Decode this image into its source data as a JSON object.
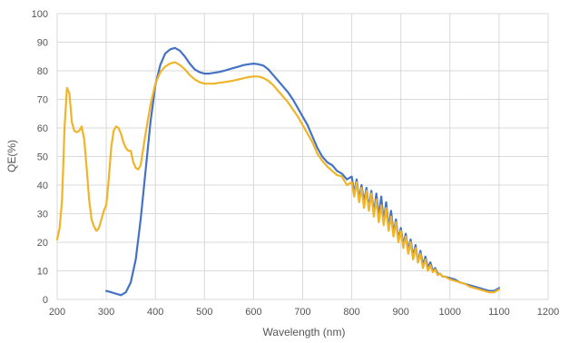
{
  "chart_data": {
    "type": "line",
    "title": "",
    "xlabel": "Wavelength (nm)",
    "ylabel": "QE(%)",
    "xlim": [
      200,
      1200
    ],
    "ylim": [
      0,
      100
    ],
    "x_ticks": [
      200,
      300,
      400,
      500,
      600,
      700,
      800,
      900,
      1000,
      1100,
      1200
    ],
    "y_ticks": [
      0,
      10,
      20,
      30,
      40,
      50,
      60,
      70,
      80,
      90,
      100
    ],
    "grid": true,
    "legend": "none",
    "series": [
      {
        "color": "#4472C4",
        "points": [
          [
            300,
            3
          ],
          [
            310,
            2.5
          ],
          [
            320,
            2
          ],
          [
            330,
            1.5
          ],
          [
            340,
            2.5
          ],
          [
            350,
            6
          ],
          [
            360,
            14
          ],
          [
            370,
            28
          ],
          [
            380,
            45
          ],
          [
            390,
            62
          ],
          [
            400,
            75
          ],
          [
            410,
            82
          ],
          [
            420,
            86
          ],
          [
            430,
            87.5
          ],
          [
            440,
            88
          ],
          [
            450,
            87
          ],
          [
            460,
            85
          ],
          [
            470,
            82.5
          ],
          [
            480,
            80.5
          ],
          [
            490,
            79.5
          ],
          [
            500,
            79
          ],
          [
            510,
            79
          ],
          [
            520,
            79.3
          ],
          [
            530,
            79.6
          ],
          [
            540,
            80
          ],
          [
            550,
            80.5
          ],
          [
            560,
            81
          ],
          [
            570,
            81.5
          ],
          [
            580,
            82
          ],
          [
            590,
            82.3
          ],
          [
            600,
            82.5
          ],
          [
            610,
            82.3
          ],
          [
            620,
            81.8
          ],
          [
            630,
            80.5
          ],
          [
            640,
            78.5
          ],
          [
            650,
            76.5
          ],
          [
            660,
            74.5
          ],
          [
            670,
            72.5
          ],
          [
            680,
            70
          ],
          [
            690,
            67
          ],
          [
            700,
            64
          ],
          [
            710,
            61
          ],
          [
            720,
            57
          ],
          [
            730,
            53
          ],
          [
            740,
            50
          ],
          [
            750,
            48
          ],
          [
            760,
            47
          ],
          [
            770,
            45
          ],
          [
            780,
            44
          ],
          [
            790,
            42
          ],
          [
            800,
            43
          ],
          [
            805,
            37
          ],
          [
            810,
            42
          ],
          [
            815,
            35
          ],
          [
            820,
            40
          ],
          [
            825,
            34
          ],
          [
            830,
            39
          ],
          [
            835,
            32
          ],
          [
            840,
            38
          ],
          [
            845,
            30
          ],
          [
            850,
            37
          ],
          [
            855,
            29
          ],
          [
            860,
            36
          ],
          [
            865,
            27
          ],
          [
            870,
            34
          ],
          [
            875,
            25
          ],
          [
            880,
            31
          ],
          [
            885,
            23
          ],
          [
            890,
            28
          ],
          [
            895,
            21
          ],
          [
            900,
            25
          ],
          [
            905,
            19
          ],
          [
            910,
            23
          ],
          [
            915,
            17
          ],
          [
            920,
            21
          ],
          [
            925,
            15
          ],
          [
            930,
            19
          ],
          [
            935,
            13
          ],
          [
            940,
            17
          ],
          [
            945,
            12
          ],
          [
            950,
            15
          ],
          [
            955,
            11
          ],
          [
            960,
            13
          ],
          [
            965,
            10
          ],
          [
            970,
            11
          ],
          [
            975,
            9
          ],
          [
            980,
            9
          ],
          [
            985,
            8
          ],
          [
            990,
            8
          ],
          [
            1000,
            7.5
          ],
          [
            1010,
            7
          ],
          [
            1020,
            6
          ],
          [
            1030,
            5.5
          ],
          [
            1040,
            5
          ],
          [
            1050,
            4.5
          ],
          [
            1060,
            4
          ],
          [
            1070,
            3.5
          ],
          [
            1080,
            3
          ],
          [
            1090,
            3
          ],
          [
            1100,
            4
          ]
        ]
      },
      {
        "color": "#F0B429",
        "points": [
          [
            200,
            21
          ],
          [
            205,
            25
          ],
          [
            210,
            35
          ],
          [
            215,
            60
          ],
          [
            220,
            74
          ],
          [
            225,
            72
          ],
          [
            230,
            62
          ],
          [
            235,
            59
          ],
          [
            240,
            58.5
          ],
          [
            245,
            59
          ],
          [
            250,
            60.5
          ],
          [
            255,
            56
          ],
          [
            260,
            46
          ],
          [
            265,
            35
          ],
          [
            270,
            28
          ],
          [
            275,
            25.5
          ],
          [
            280,
            24
          ],
          [
            285,
            25
          ],
          [
            290,
            28
          ],
          [
            295,
            31
          ],
          [
            300,
            33
          ],
          [
            305,
            42
          ],
          [
            310,
            53
          ],
          [
            315,
            59
          ],
          [
            320,
            60.5
          ],
          [
            325,
            60
          ],
          [
            330,
            58
          ],
          [
            335,
            55
          ],
          [
            340,
            53
          ],
          [
            345,
            52
          ],
          [
            350,
            52
          ],
          [
            355,
            48
          ],
          [
            360,
            46
          ],
          [
            365,
            45.5
          ],
          [
            370,
            47
          ],
          [
            380,
            58
          ],
          [
            390,
            68
          ],
          [
            400,
            75.5
          ],
          [
            410,
            79.5
          ],
          [
            420,
            81.5
          ],
          [
            430,
            82.5
          ],
          [
            440,
            83
          ],
          [
            450,
            82
          ],
          [
            460,
            80.5
          ],
          [
            470,
            78.5
          ],
          [
            480,
            77
          ],
          [
            490,
            76
          ],
          [
            500,
            75.5
          ],
          [
            510,
            75.5
          ],
          [
            520,
            75.5
          ],
          [
            530,
            75.8
          ],
          [
            540,
            76
          ],
          [
            550,
            76.3
          ],
          [
            560,
            76.6
          ],
          [
            570,
            77
          ],
          [
            580,
            77.4
          ],
          [
            590,
            77.8
          ],
          [
            600,
            78
          ],
          [
            610,
            78
          ],
          [
            620,
            77.5
          ],
          [
            630,
            76.5
          ],
          [
            640,
            75
          ],
          [
            650,
            73
          ],
          [
            660,
            71
          ],
          [
            670,
            69
          ],
          [
            680,
            66.5
          ],
          [
            690,
            64
          ],
          [
            700,
            61
          ],
          [
            710,
            58
          ],
          [
            720,
            55
          ],
          [
            730,
            51
          ],
          [
            740,
            48.5
          ],
          [
            750,
            46.5
          ],
          [
            760,
            45
          ],
          [
            770,
            43.5
          ],
          [
            780,
            43
          ],
          [
            790,
            40
          ],
          [
            800,
            41
          ],
          [
            805,
            36
          ],
          [
            810,
            41
          ],
          [
            815,
            34
          ],
          [
            820,
            39
          ],
          [
            825,
            32
          ],
          [
            830,
            38
          ],
          [
            835,
            31
          ],
          [
            840,
            37
          ],
          [
            845,
            29
          ],
          [
            850,
            35
          ],
          [
            855,
            27
          ],
          [
            860,
            33
          ],
          [
            865,
            26
          ],
          [
            870,
            32
          ],
          [
            875,
            24
          ],
          [
            880,
            29
          ],
          [
            885,
            22
          ],
          [
            890,
            27
          ],
          [
            895,
            20
          ],
          [
            900,
            24
          ],
          [
            905,
            18
          ],
          [
            910,
            22
          ],
          [
            915,
            16
          ],
          [
            920,
            20
          ],
          [
            925,
            14
          ],
          [
            930,
            18
          ],
          [
            935,
            13
          ],
          [
            940,
            16
          ],
          [
            945,
            11
          ],
          [
            950,
            14
          ],
          [
            955,
            10
          ],
          [
            960,
            12
          ],
          [
            965,
            9.5
          ],
          [
            970,
            10.5
          ],
          [
            975,
            8.5
          ],
          [
            980,
            9
          ],
          [
            985,
            8
          ],
          [
            990,
            8
          ],
          [
            1000,
            7
          ],
          [
            1010,
            6.5
          ],
          [
            1020,
            6
          ],
          [
            1030,
            5.5
          ],
          [
            1040,
            4.5
          ],
          [
            1050,
            4
          ],
          [
            1060,
            3.5
          ],
          [
            1070,
            3
          ],
          [
            1080,
            2.5
          ],
          [
            1090,
            2.5
          ],
          [
            1100,
            3.5
          ]
        ]
      }
    ]
  }
}
